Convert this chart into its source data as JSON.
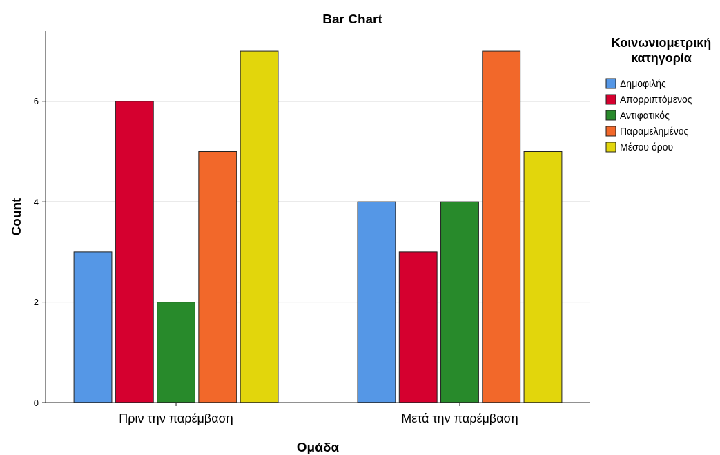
{
  "chart_data": {
    "type": "bar",
    "title": "Bar Chart",
    "xlabel": "Ομάδα",
    "ylabel": "Count",
    "legend_title": "Κοινωνιομετρική κατηγορία",
    "categories": [
      "Πριν την παρέμβαση",
      "Μετά την παρέμβαση"
    ],
    "series": [
      {
        "name": "Δημοφιλής",
        "color": "#5597e6",
        "values": [
          3,
          4
        ]
      },
      {
        "name": "Απορριπτόμενος",
        "color": "#d5002f",
        "values": [
          6,
          3
        ]
      },
      {
        "name": "Αντιφατικός",
        "color": "#288a2b",
        "values": [
          2,
          4
        ]
      },
      {
        "name": "Παραμελημένος",
        "color": "#f2682a",
        "values": [
          5,
          7
        ]
      },
      {
        "name": "Μέσου όρου",
        "color": "#e2d60c",
        "values": [
          7,
          5
        ]
      }
    ],
    "ylim": [
      0,
      7.4
    ],
    "yticks": [
      0,
      2,
      4,
      6
    ],
    "grid": "y",
    "legend": "top right"
  }
}
